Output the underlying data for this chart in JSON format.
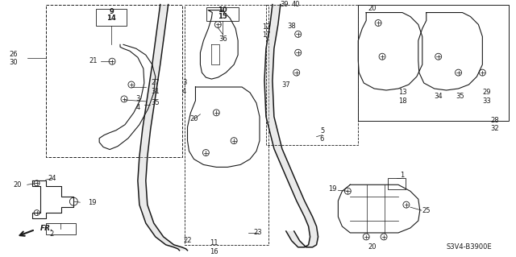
{
  "bg_color": "#ffffff",
  "fig_width": 6.4,
  "fig_height": 3.19,
  "dpi": 100,
  "diagram_code": "S3V4-B3900E",
  "line_color": "#1a1a1a",
  "text_color": "#1a1a1a"
}
